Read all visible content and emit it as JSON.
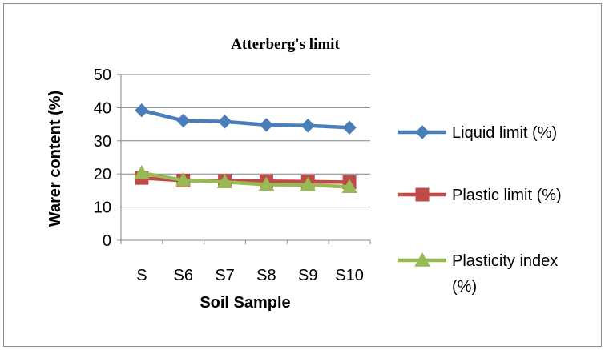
{
  "chart_data": {
    "type": "line",
    "title": "Atterberg's limit",
    "xlabel": "Soil Sample",
    "ylabel": "Warer content (%)",
    "categories": [
      "S",
      "S6",
      "S7",
      "S8",
      "S9",
      "S10"
    ],
    "ylim": [
      0,
      50
    ],
    "yticks": [
      0,
      10,
      20,
      30,
      40,
      50
    ],
    "grid": true,
    "legend_position": "right",
    "series": [
      {
        "name": "Liquid limit (%)",
        "name_lines": [
          "Liquid limit (%)"
        ],
        "color": "#4a7ebb",
        "marker": "diamond",
        "values": [
          39.2,
          36.1,
          35.8,
          34.8,
          34.6,
          34.0
        ]
      },
      {
        "name": "Plastic limit (%)",
        "name_lines": [
          "Plastic limit (%)"
        ],
        "color": "#be4b48",
        "marker": "square",
        "values": [
          18.8,
          18.0,
          17.9,
          17.8,
          17.7,
          17.5
        ]
      },
      {
        "name": "Plasticity index (%)",
        "name_lines": [
          "Plasticity index",
          "(%)"
        ],
        "color": "#98b954",
        "marker": "triangle",
        "values": [
          20.3,
          18.1,
          17.6,
          16.8,
          16.7,
          16.1
        ]
      }
    ]
  }
}
